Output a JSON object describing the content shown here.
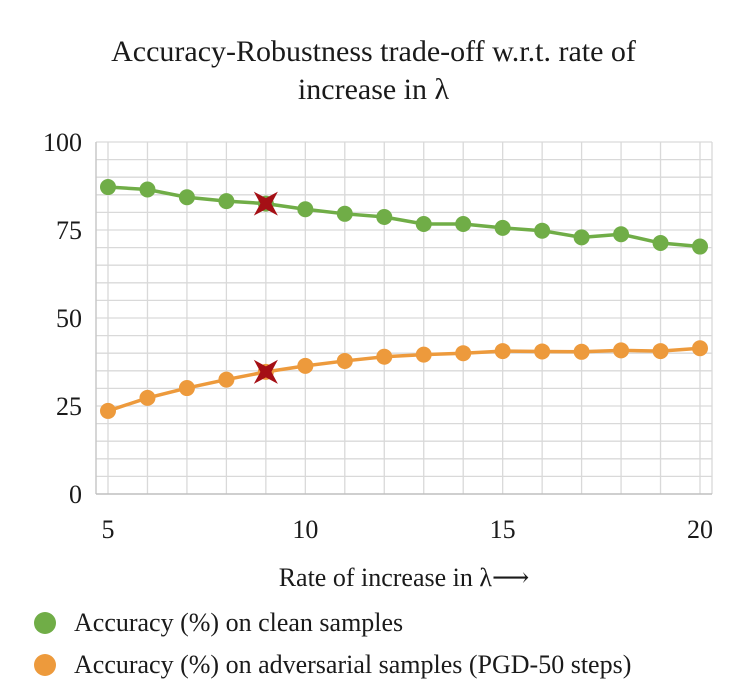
{
  "chart_data": {
    "type": "line",
    "title_lines": [
      "Accuracy-Robustness trade-off w.r.t. rate of",
      "increase in λ"
    ],
    "xlabel": "Rate of increase in λ⟶",
    "ylabel": "",
    "x": [
      5,
      6,
      7,
      8,
      9,
      10,
      11,
      12,
      13,
      14,
      15,
      16,
      17,
      18,
      19,
      20
    ],
    "xlim": [
      5,
      20
    ],
    "ylim": [
      0,
      100
    ],
    "x_ticks": [
      "5",
      "10",
      "15",
      "20"
    ],
    "x_tick_values": [
      5,
      10,
      15,
      20
    ],
    "y_ticks": [
      "0",
      "25",
      "50",
      "75",
      "100"
    ],
    "y_tick_values": [
      0,
      25,
      50,
      75,
      100
    ],
    "grid": true,
    "legend_position": "bottom",
    "series": [
      {
        "name": "Accuracy (%) on clean samples",
        "color": "#70ad47",
        "values": [
          87.2,
          86.5,
          84.3,
          83.2,
          82.5,
          80.9,
          79.6,
          78.7,
          76.7,
          76.7,
          75.6,
          74.8,
          72.9,
          73.8,
          71.3,
          70.3
        ]
      },
      {
        "name": "Accuracy (%) on adversarial samples (PGD-50 steps)",
        "color": "#ed9a3c",
        "values": [
          23.6,
          27.3,
          30.1,
          32.5,
          34.7,
          36.4,
          37.8,
          39.0,
          39.6,
          40.0,
          40.6,
          40.5,
          40.4,
          40.8,
          40.6,
          41.4
        ]
      }
    ],
    "markers": [
      {
        "x": 9,
        "y": 82.5,
        "series": "Accuracy (%) on clean samples",
        "shape": "star",
        "color": "#a50f15"
      },
      {
        "x": 9,
        "y": 34.7,
        "series": "Accuracy (%) on adversarial samples (PGD-50 steps)",
        "shape": "star",
        "color": "#a50f15"
      }
    ]
  }
}
